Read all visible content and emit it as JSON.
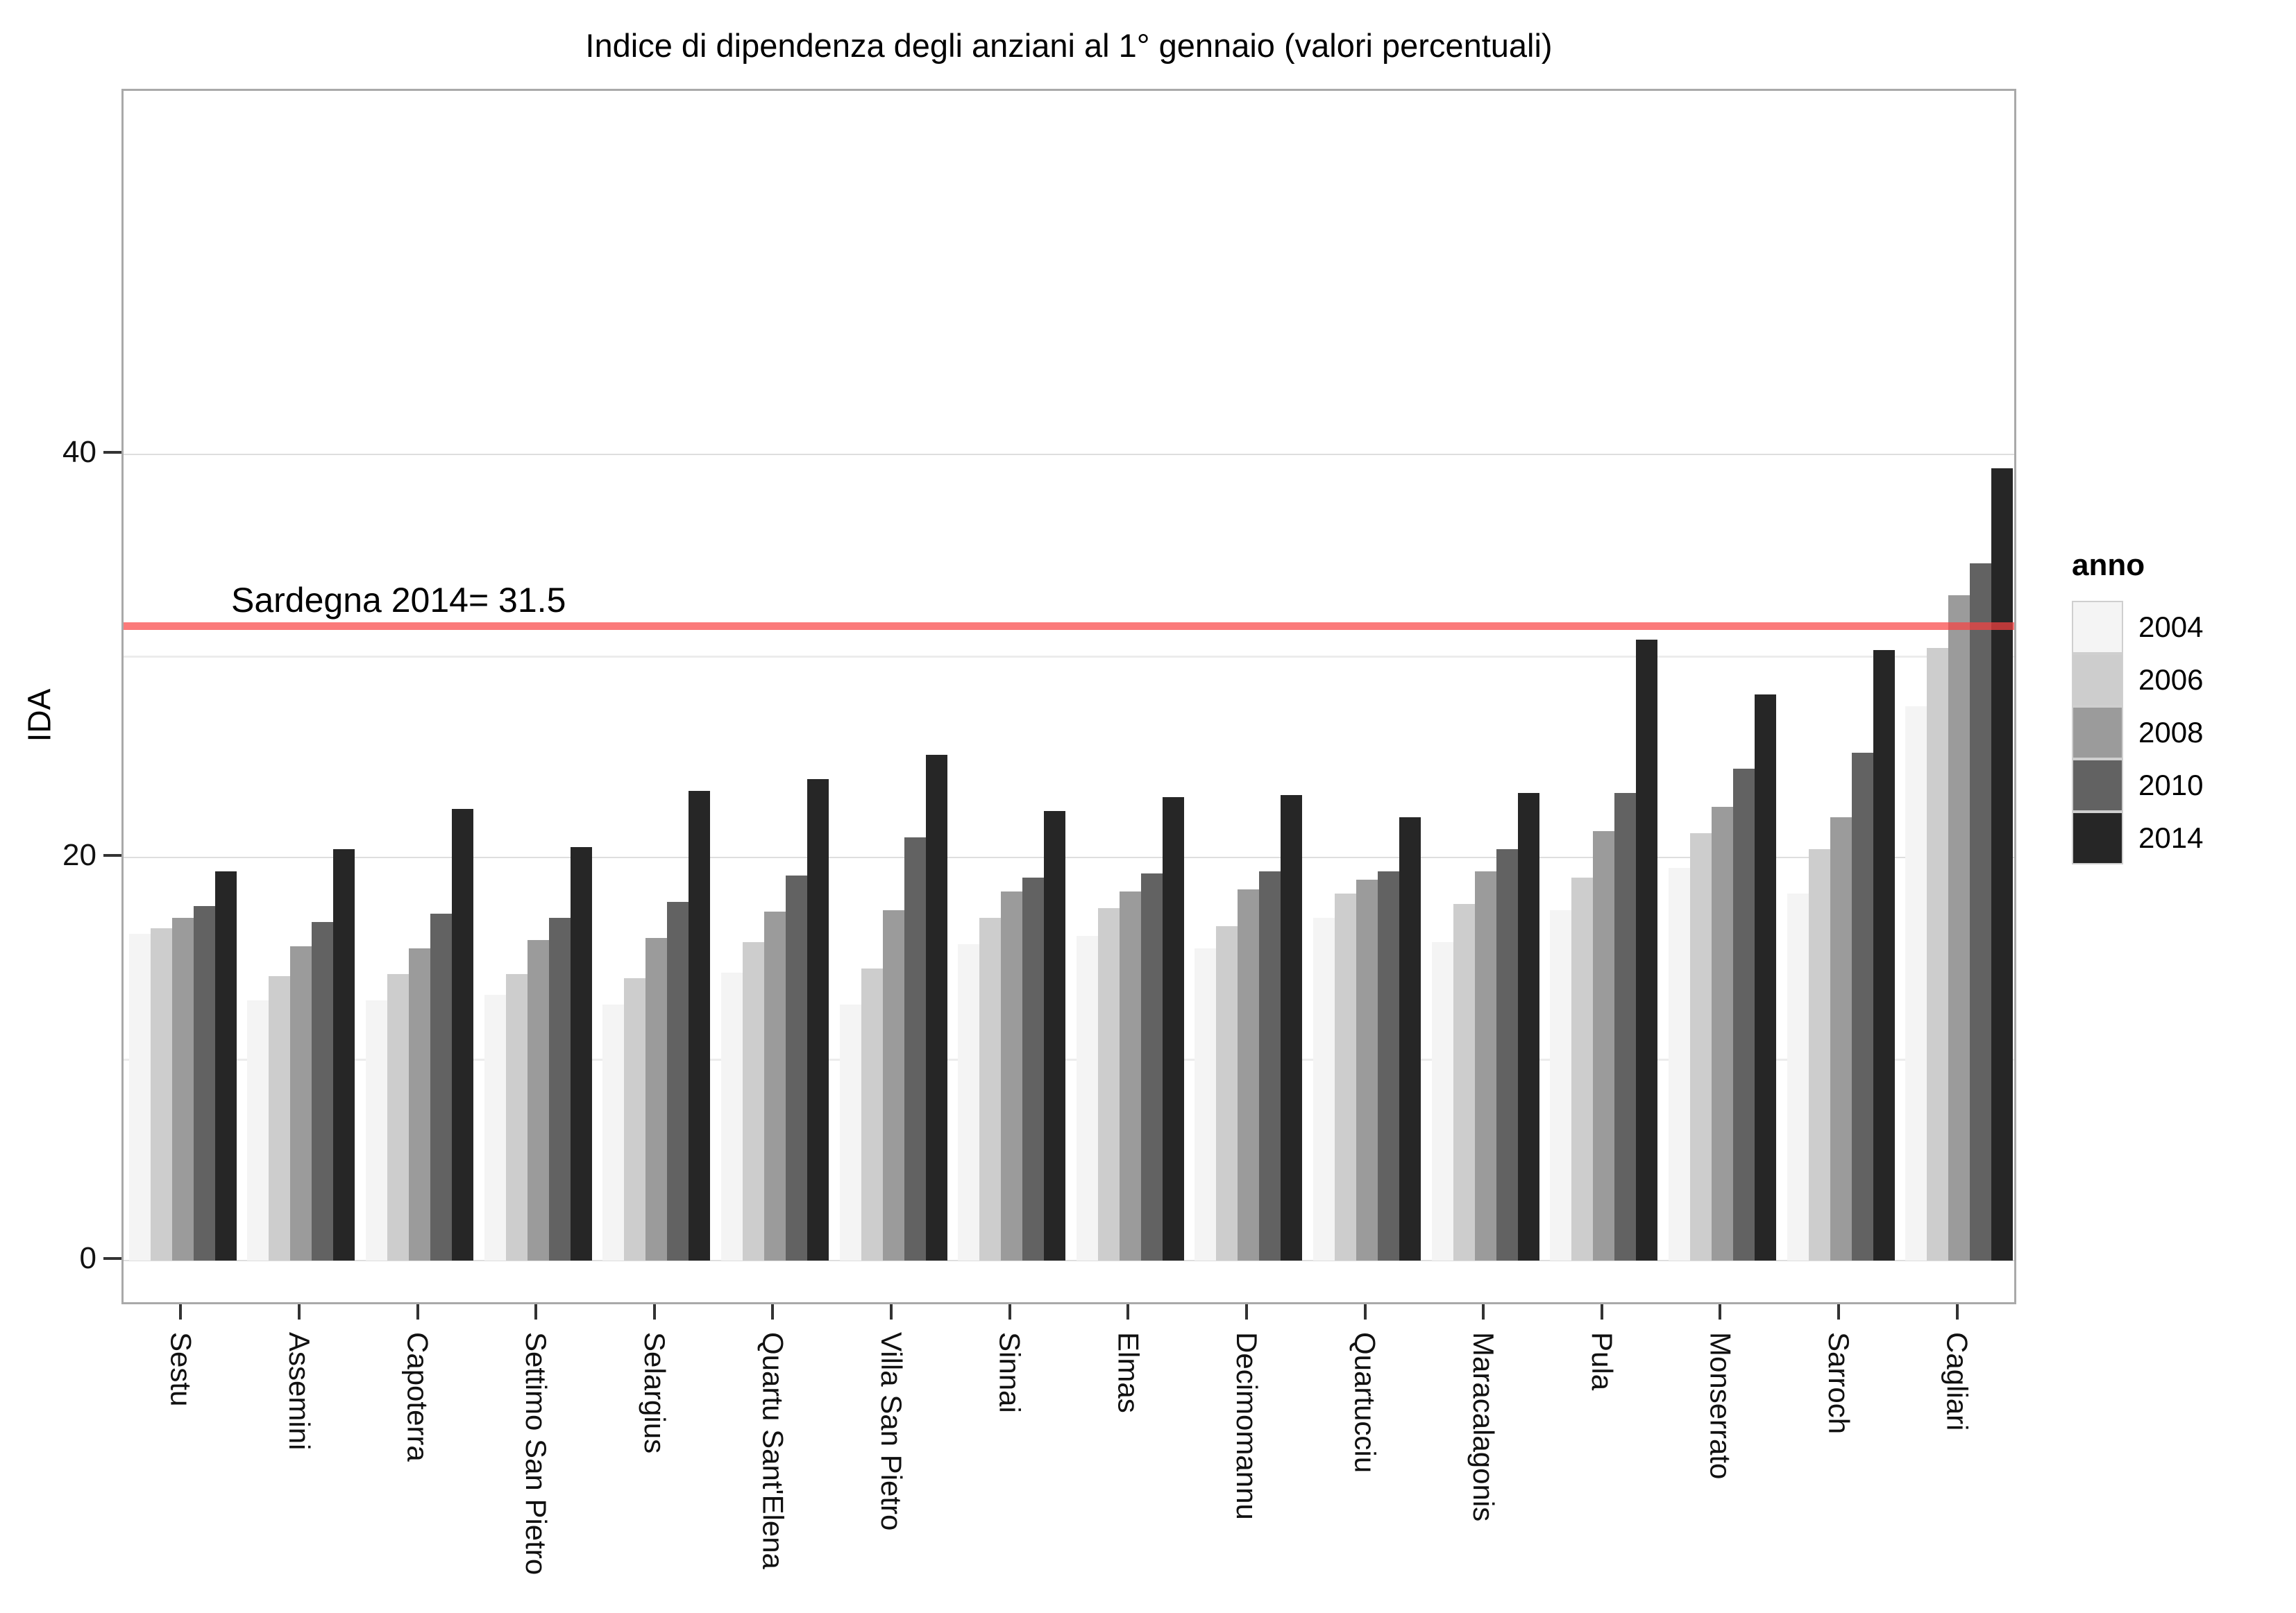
{
  "page_title": "Indice di dipendenza degli anziani al 1° gennaio (valori percentuali)",
  "y_axis": {
    "label": "IDA",
    "tick_labels": [
      "0",
      "20",
      "40"
    ]
  },
  "annotation": {
    "label": "Sardegna 2014= 31.5",
    "value": 31.5
  },
  "legend": {
    "title": "anno",
    "entries": [
      {
        "label": "2004",
        "color": "#f4f4f4"
      },
      {
        "label": "2006",
        "color": "#cdcdcd"
      },
      {
        "label": "2008",
        "color": "#9b9b9b"
      },
      {
        "label": "2010",
        "color": "#626262"
      },
      {
        "label": "2014",
        "color": "#262626"
      }
    ]
  },
  "colors": {
    "reference_line": "#f94242",
    "grid_major": "#dedede",
    "grid_minor": "#ececec",
    "panel_border": "#a9a9a9",
    "background": "#ffffff"
  },
  "chart_data": {
    "type": "bar",
    "title": "Indice di dipendenza degli anziani al 1° gennaio (valori percentuali)",
    "xlabel": "",
    "ylabel": "IDA",
    "ylim": [
      0,
      58
    ],
    "y_major_ticks": [
      0,
      20,
      40
    ],
    "y_minor_ticks": [
      10,
      30
    ],
    "grid": true,
    "legend_title": "anno",
    "legend_position": "right",
    "reference_line": {
      "value": 31.5,
      "label": "Sardegna 2014= 31.5"
    },
    "categories": [
      "Sestu",
      "Assemini",
      "Capoterra",
      "Settimo San Pietro",
      "Selargius",
      "Quartu Sant'Elena",
      "Villa San Pietro",
      "Sinnai",
      "Elmas",
      "Decimomannu",
      "Quartucciu",
      "Maracalagonis",
      "Pula",
      "Monserrato",
      "Sarroch",
      "Cagliari"
    ],
    "series": [
      {
        "name": "2004",
        "color": "#f4f4f4",
        "values": [
          16.2,
          12.9,
          12.9,
          13.2,
          12.7,
          14.3,
          12.7,
          15.7,
          16.1,
          15.5,
          17.0,
          15.8,
          17.4,
          19.5,
          18.2,
          27.5
        ]
      },
      {
        "name": "2006",
        "color": "#cdcdcd",
        "values": [
          16.5,
          14.1,
          14.2,
          14.2,
          14.0,
          15.8,
          14.5,
          17.0,
          17.5,
          16.6,
          18.2,
          17.7,
          19.0,
          21.2,
          20.4,
          30.4
        ]
      },
      {
        "name": "2008",
        "color": "#9b9b9b",
        "values": [
          17.0,
          15.6,
          15.5,
          15.9,
          16.0,
          17.3,
          17.4,
          18.3,
          18.3,
          18.4,
          18.9,
          19.3,
          21.3,
          22.5,
          22.0,
          33.0
        ]
      },
      {
        "name": "2010",
        "color": "#626262",
        "values": [
          17.6,
          16.8,
          17.2,
          17.0,
          17.8,
          19.1,
          21.0,
          19.0,
          19.2,
          19.3,
          19.3,
          20.4,
          23.2,
          24.4,
          25.2,
          34.6
        ]
      },
      {
        "name": "2014",
        "color": "#262626",
        "values": [
          19.3,
          20.4,
          22.4,
          20.5,
          23.3,
          23.9,
          25.1,
          22.3,
          23.0,
          23.1,
          22.0,
          23.2,
          30.8,
          28.1,
          30.3,
          39.3
        ]
      }
    ]
  }
}
